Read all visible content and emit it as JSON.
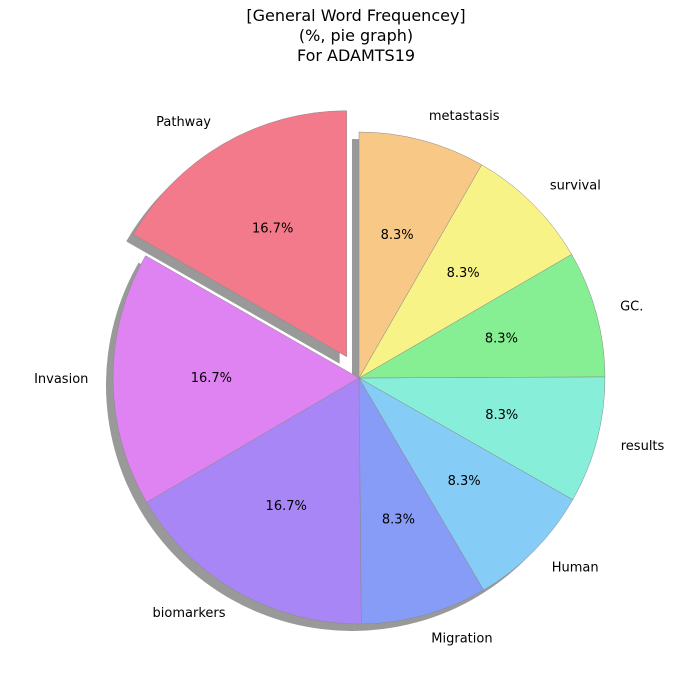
{
  "chart_data": {
    "type": "pie",
    "title_lines": [
      "[General Word Frequencey]",
      "(%, pie graph)",
      "For ADAMTS19"
    ],
    "start_angle_deg": 90,
    "counterclock": true,
    "shadow": true,
    "slices": [
      {
        "label": "Pathway",
        "value": 16.7,
        "pct_label": "16.7%",
        "color": "#f27a8a",
        "explode": true
      },
      {
        "label": "Invasion",
        "value": 16.7,
        "pct_label": "16.7%",
        "color": "#df83f3"
      },
      {
        "label": "biomarkers",
        "value": 16.7,
        "pct_label": "16.7%",
        "color": "#a986f5"
      },
      {
        "label": "Migration",
        "value": 8.3,
        "pct_label": "8.3%",
        "color": "#869cf6"
      },
      {
        "label": "Human",
        "value": 8.3,
        "pct_label": "8.3%",
        "color": "#85cdf6"
      },
      {
        "label": "results",
        "value": 8.3,
        "pct_label": "8.3%",
        "color": "#87eed9"
      },
      {
        "label": "GC.",
        "value": 8.3,
        "pct_label": "8.3%",
        "color": "#87ef93"
      },
      {
        "label": "survival",
        "value": 8.3,
        "pct_label": "8.3%",
        "color": "#f8f386"
      },
      {
        "label": "metastasis",
        "value": 8.3,
        "pct_label": "8.3%",
        "color": "#f8c886"
      }
    ]
  }
}
